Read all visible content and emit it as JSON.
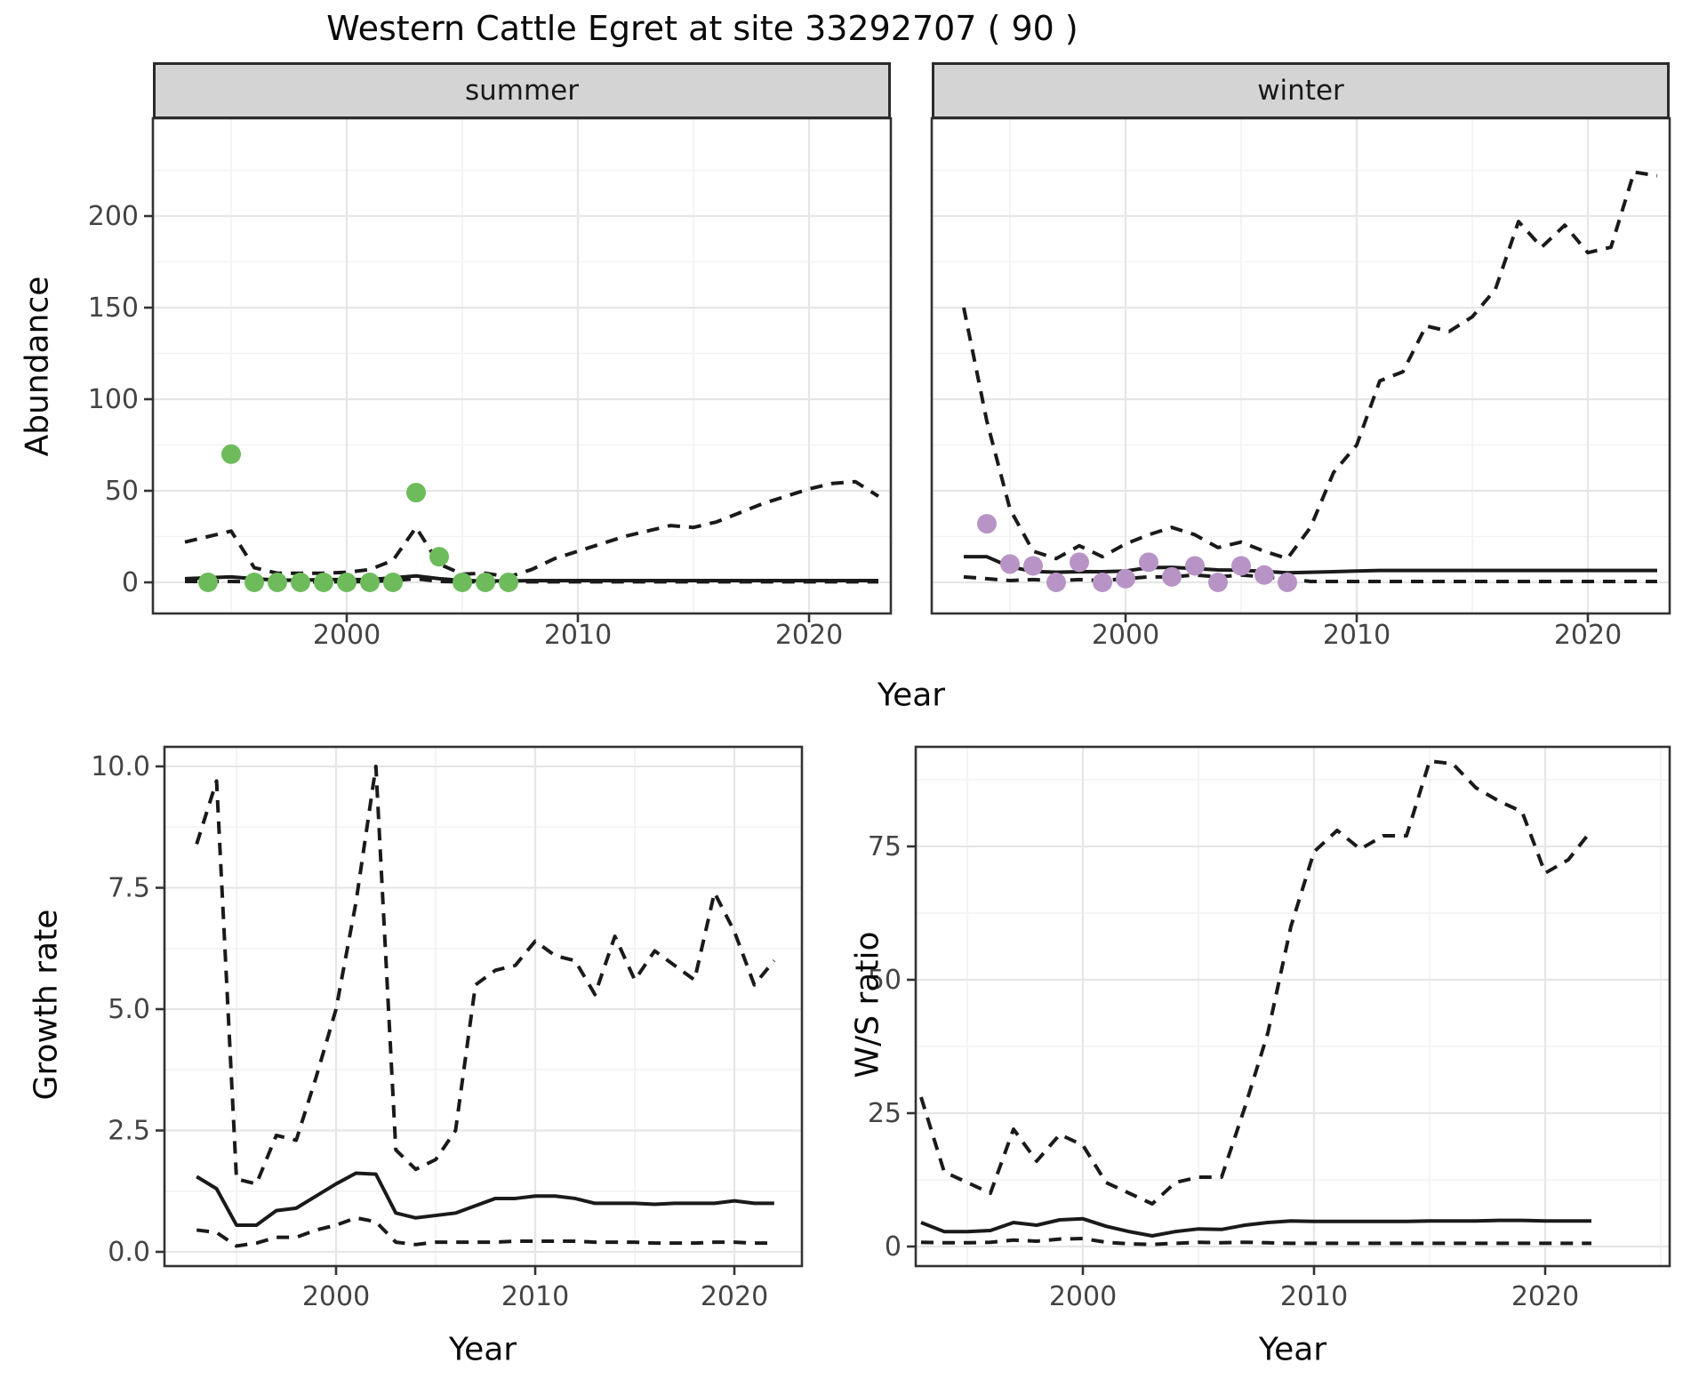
{
  "title": "Western Cattle Egret at site 33292707 ( 90 )",
  "facet_labels": {
    "summer": "summer",
    "winter": "winter"
  },
  "axis_titles": {
    "abundance": "Abundance",
    "year_top": "Year",
    "growth_rate": "Growth rate",
    "year_growth": "Year",
    "ws_ratio": "W/S ratio",
    "year_ws": "Year"
  },
  "colors": {
    "summer_points": "#6ebb5c",
    "winter_points": "#b894c6",
    "line": "#1a1a1a",
    "panel_border": "#333333",
    "strip_fill": "#d4d4d4",
    "grid_major": "#e6e6e6",
    "grid_minor": "#f2f2f2",
    "tick_text": "#444444"
  },
  "chart_data": [
    {
      "type": "line",
      "facet": "summer",
      "xlabel": "Year",
      "ylabel": "Abundance",
      "xlim": [
        1991.6,
        2023.5
      ],
      "ylim": [
        -17,
        252
      ],
      "grid": true,
      "legend_position": "none",
      "xticks": [
        2000,
        2010,
        2020
      ],
      "xtick_labels": [
        "2000",
        "2010",
        "2020"
      ],
      "yticks": [
        0,
        50,
        100,
        150,
        200
      ],
      "ytick_labels": [
        "0",
        "50",
        "100",
        "150",
        "200"
      ],
      "years": [
        1993,
        1994,
        1995,
        1996,
        1997,
        1998,
        1999,
        2000,
        2001,
        2002,
        2003,
        2004,
        2005,
        2006,
        2007,
        2008,
        2009,
        2010,
        2011,
        2012,
        2013,
        2014,
        2015,
        2016,
        2017,
        2018,
        2019,
        2020,
        2021,
        2022,
        2023
      ],
      "series": [
        {
          "name": "median",
          "style": "solid",
          "values": [
            2,
            2.5,
            3,
            2,
            1.2,
            1.2,
            1.5,
            1.5,
            1.5,
            2.5,
            3.5,
            2,
            1,
            0.8,
            0.8,
            1,
            1,
            1,
            1,
            1,
            1,
            1,
            1,
            1,
            1,
            1,
            1,
            1,
            1,
            1,
            1
          ]
        },
        {
          "name": "upper_ci",
          "style": "dashed",
          "values": [
            22,
            25,
            28,
            8,
            5,
            5,
            5,
            5.5,
            7,
            12,
            30,
            10,
            4.5,
            5,
            3,
            7,
            13,
            17,
            21,
            25,
            28,
            31,
            30,
            33,
            38,
            43,
            47,
            51,
            54,
            55,
            47
          ]
        },
        {
          "name": "lower_ci",
          "style": "dashed",
          "values": [
            0.5,
            0.5,
            0.5,
            0.3,
            0.3,
            0.3,
            0.3,
            0.3,
            0.5,
            1,
            2,
            0.5,
            0.3,
            0.3,
            0.3,
            0.3,
            0.3,
            0.3,
            0.3,
            0.3,
            0.3,
            0.3,
            0.3,
            0.3,
            0.3,
            0.3,
            0.3,
            0.3,
            0.3,
            0.3,
            0.3
          ]
        }
      ],
      "points": {
        "name": "observed_counts",
        "color": "#6ebb5c",
        "x": [
          1994,
          1995,
          1996,
          1997,
          1998,
          1999,
          2000,
          2001,
          2002,
          2003,
          2004,
          2005,
          2006,
          2007
        ],
        "values": [
          0,
          70,
          0,
          0,
          0,
          0,
          0,
          0,
          0,
          49,
          14,
          0,
          0,
          0
        ]
      }
    },
    {
      "type": "line",
      "facet": "winter",
      "xlabel": "Year",
      "ylabel": "Abundance",
      "xlim": [
        1991.6,
        2023.5
      ],
      "ylim": [
        -17,
        252
      ],
      "grid": true,
      "legend_position": "none",
      "xticks": [
        2000,
        2010,
        2020
      ],
      "xtick_labels": [
        "2000",
        "2010",
        "2020"
      ],
      "yticks": [
        0,
        50,
        100,
        150,
        200
      ],
      "ytick_labels": [],
      "years": [
        1993,
        1994,
        1995,
        1996,
        1997,
        1998,
        1999,
        2000,
        2001,
        2002,
        2003,
        2004,
        2005,
        2006,
        2007,
        2008,
        2009,
        2010,
        2011,
        2012,
        2013,
        2014,
        2015,
        2016,
        2017,
        2018,
        2019,
        2020,
        2021,
        2022,
        2023
      ],
      "series": [
        {
          "name": "median",
          "style": "solid",
          "values": [
            14,
            14,
            8.5,
            6,
            5.5,
            5.8,
            5.8,
            6.2,
            8,
            8.2,
            7.5,
            6.8,
            6.6,
            6,
            5.2,
            5.5,
            5.8,
            6.2,
            6.5,
            6.5,
            6.5,
            6.5,
            6.5,
            6.5,
            6.5,
            6.5,
            6.5,
            6.5,
            6.5,
            6.5,
            6.5
          ]
        },
        {
          "name": "upper_ci",
          "style": "dashed",
          "values": [
            150,
            88,
            40,
            17,
            13,
            20,
            14,
            21,
            26,
            30,
            26,
            19,
            22,
            17,
            13,
            30,
            60,
            75,
            110,
            115,
            140,
            137,
            145,
            160,
            197,
            183,
            195,
            180,
            183,
            224,
            222
          ]
        },
        {
          "name": "lower_ci",
          "style": "dashed",
          "values": [
            3,
            2,
            1,
            1.5,
            1,
            1.5,
            1,
            2,
            3,
            3,
            4,
            3,
            4,
            3,
            2,
            0.5,
            0.5,
            0.5,
            0.5,
            0.5,
            0.5,
            0.5,
            0.5,
            0.5,
            0.5,
            0.5,
            0.5,
            0.5,
            0.5,
            0.5,
            0.5
          ]
        }
      ],
      "points": {
        "name": "observed_counts",
        "color": "#b894c6",
        "x": [
          1994,
          1995,
          1996,
          1997,
          1998,
          1999,
          2000,
          2001,
          2002,
          2003,
          2004,
          2005,
          2006,
          2007
        ],
        "values": [
          32,
          10,
          9,
          0,
          11,
          0,
          2,
          11,
          3,
          9,
          0,
          9,
          4,
          0
        ]
      }
    },
    {
      "type": "line",
      "facet": null,
      "xlabel": "Year",
      "ylabel": "Growth rate",
      "xlim": [
        1991.4,
        2023.4
      ],
      "ylim": [
        -0.6,
        10.4
      ],
      "grid": true,
      "legend_position": "none",
      "xticks": [
        2000,
        2010,
        2020
      ],
      "xtick_labels": [
        "2000",
        "2010",
        "2020"
      ],
      "yticks": [
        0,
        2.5,
        5,
        7.5,
        10
      ],
      "ytick_labels": [
        "0.0",
        "2.5",
        "5.0",
        "7.5",
        "10.0"
      ],
      "years": [
        1993,
        1994,
        1995,
        1996,
        1997,
        1998,
        1999,
        2000,
        2001,
        2002,
        2003,
        2004,
        2005,
        2006,
        2007,
        2008,
        2009,
        2010,
        2011,
        2012,
        2013,
        2014,
        2015,
        2016,
        2017,
        2018,
        2019,
        2020,
        2021,
        2022
      ],
      "series": [
        {
          "name": "median",
          "style": "solid",
          "values": [
            1.55,
            1.3,
            0.55,
            0.55,
            0.85,
            0.9,
            1.15,
            1.4,
            1.62,
            1.6,
            0.8,
            0.7,
            0.75,
            0.8,
            0.95,
            1.1,
            1.1,
            1.15,
            1.15,
            1.1,
            1.0,
            1.0,
            1.0,
            0.98,
            1.0,
            1.0,
            1.0,
            1.05,
            1.0,
            1.0
          ]
        },
        {
          "name": "upper_ci",
          "style": "dashed",
          "values": [
            8.4,
            9.7,
            1.5,
            1.4,
            2.4,
            2.3,
            3.6,
            5.0,
            7.2,
            10.0,
            2.1,
            1.7,
            1.9,
            2.5,
            5.5,
            5.8,
            5.9,
            6.4,
            6.1,
            6.0,
            5.3,
            6.5,
            5.6,
            6.2,
            5.9,
            5.6,
            7.4,
            6.6,
            5.5,
            6.0
          ]
        },
        {
          "name": "lower_ci",
          "style": "dashed",
          "values": [
            0.45,
            0.4,
            0.12,
            0.18,
            0.3,
            0.3,
            0.45,
            0.55,
            0.7,
            0.62,
            0.2,
            0.15,
            0.2,
            0.2,
            0.2,
            0.2,
            0.22,
            0.22,
            0.22,
            0.22,
            0.2,
            0.2,
            0.2,
            0.18,
            0.18,
            0.18,
            0.2,
            0.2,
            0.18,
            0.18
          ]
        }
      ],
      "points": null
    },
    {
      "type": "line",
      "facet": null,
      "xlabel": "Year",
      "ylabel": "W/S ratio",
      "xlim": [
        1992.8,
        2025.4
      ],
      "ylim": [
        -3.7,
        93.7
      ],
      "grid": true,
      "legend_position": "none",
      "xticks": [
        2000,
        2010,
        2020
      ],
      "xtick_labels": [
        "2000",
        "2010",
        "2020"
      ],
      "yticks": [
        0,
        25,
        50,
        75
      ],
      "ytick_labels": [
        "0",
        "25",
        "50",
        "75"
      ],
      "years": [
        1993,
        1994,
        1995,
        1996,
        1997,
        1998,
        1999,
        2000,
        2001,
        2002,
        2003,
        2004,
        2005,
        2006,
        2007,
        2008,
        2009,
        2010,
        2011,
        2012,
        2013,
        2014,
        2015,
        2016,
        2017,
        2018,
        2019,
        2020,
        2021,
        2022
      ],
      "series": [
        {
          "name": "median",
          "style": "solid",
          "values": [
            4.5,
            2.8,
            2.8,
            3.0,
            4.5,
            4.0,
            5.0,
            5.2,
            3.8,
            2.8,
            2.0,
            2.8,
            3.3,
            3.2,
            4.0,
            4.5,
            4.8,
            4.7,
            4.7,
            4.7,
            4.7,
            4.7,
            4.8,
            4.8,
            4.8,
            4.9,
            4.9,
            4.8,
            4.8,
            4.8
          ]
        },
        {
          "name": "upper_ci",
          "style": "dashed",
          "values": [
            28,
            14,
            12,
            10,
            22,
            16,
            21,
            19,
            12,
            10,
            8,
            12,
            13,
            13,
            26,
            40,
            60,
            74,
            78,
            74.5,
            77,
            77,
            91,
            90.5,
            86,
            83.5,
            81.5,
            70,
            72.5,
            78
          ]
        },
        {
          "name": "lower_ci",
          "style": "dashed",
          "values": [
            0.8,
            0.7,
            0.7,
            0.8,
            1.2,
            1.0,
            1.4,
            1.5,
            0.8,
            0.5,
            0.4,
            0.6,
            0.8,
            0.7,
            0.8,
            0.7,
            0.6,
            0.6,
            0.6,
            0.6,
            0.6,
            0.6,
            0.6,
            0.6,
            0.6,
            0.6,
            0.6,
            0.6,
            0.6,
            0.6
          ]
        }
      ],
      "points": null
    }
  ]
}
